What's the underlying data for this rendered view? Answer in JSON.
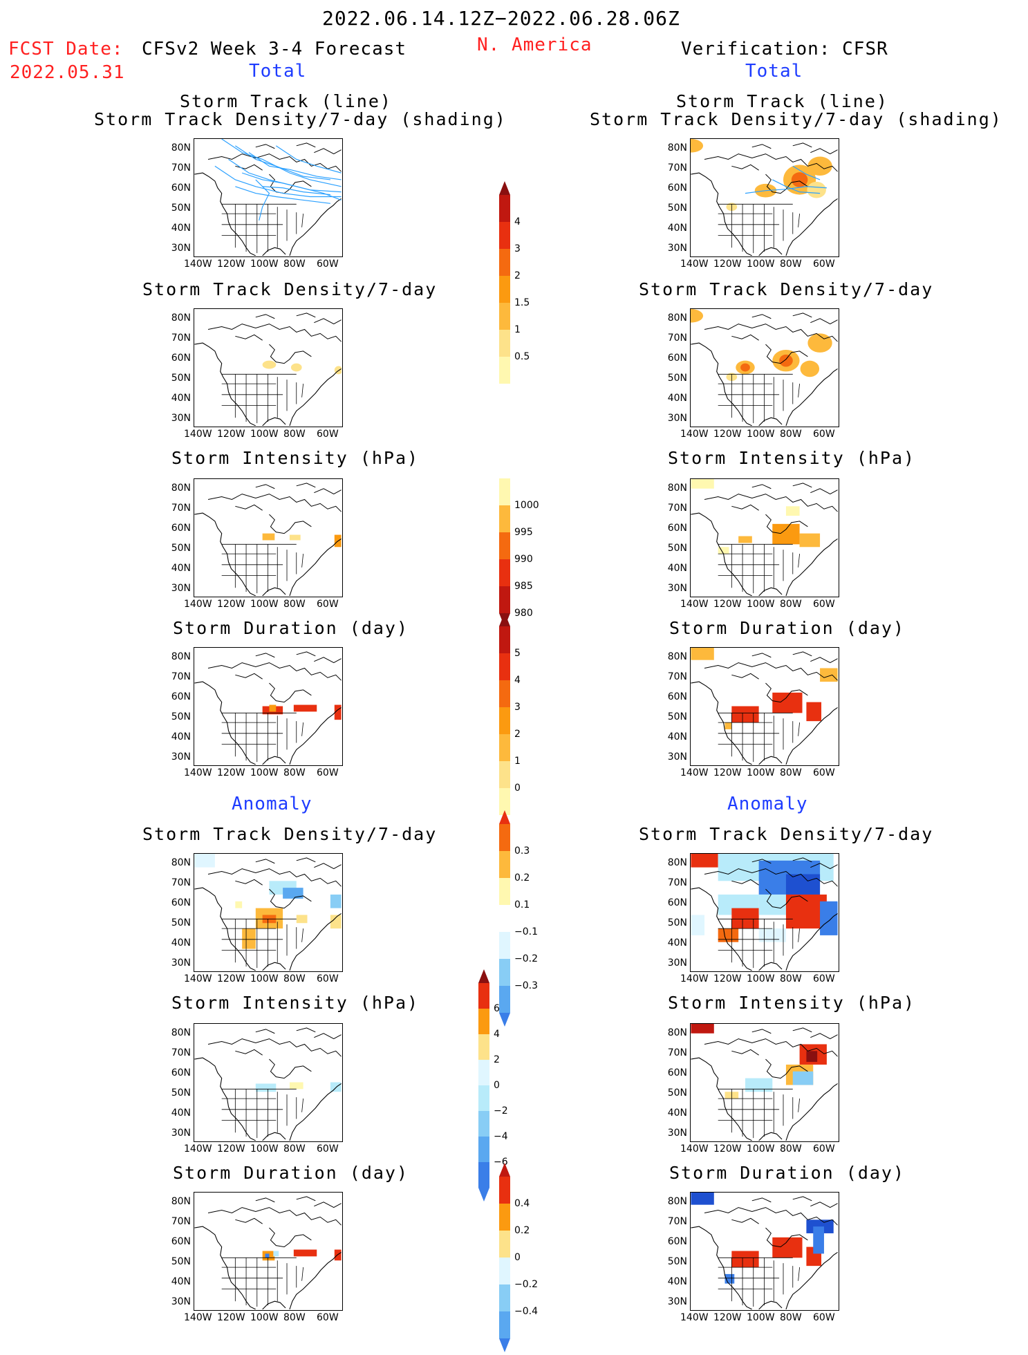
{
  "header": {
    "period": "2022.06.14.12Z−2022.06.28.06Z",
    "fcst_label": "FCST Date:",
    "fcst_date": "2022.05.31",
    "model": "CFSv2 Week 3-4 Forecast",
    "region": "N. America",
    "verification": "Verification: CFSR",
    "total_left": "Total",
    "total_right": "Total",
    "anomaly_left": "Anomaly",
    "anomaly_right": "Anomaly"
  },
  "titles": {
    "track_line": "Storm Track (line)",
    "track_density_shading": "Storm Track Density/7-day (shading)",
    "density": "Storm Track Density/7-day",
    "intensity": "Storm Intensity (hPa)",
    "duration": "Storm Duration (day)"
  },
  "axes": {
    "lat": [
      "80N",
      "70N",
      "60N",
      "50N",
      "40N",
      "30N"
    ],
    "lon": [
      "140W",
      "120W",
      "100W",
      "80W",
      "60W"
    ]
  },
  "colorbars": {
    "density_total": [
      "4",
      "3",
      "2",
      "1.5",
      "1",
      "0.5"
    ],
    "intensity_total": [
      "1000",
      "995",
      "990",
      "985",
      "980"
    ],
    "duration_total": [
      "5",
      "4",
      "3",
      "2",
      "1",
      "0"
    ],
    "density_anom": [
      "0.3",
      "0.2",
      "0.1",
      "−0.1",
      "−0.2",
      "−0.3"
    ],
    "intensity_anom": [
      "6",
      "4",
      "2",
      "0",
      "−2",
      "−4",
      "−6"
    ],
    "duration_anom": [
      "0.4",
      "0.2",
      "0",
      "−0.2",
      "−0.4"
    ]
  },
  "colors": {
    "warm": [
      "#fff8b0",
      "#fde28a",
      "#fdb93c",
      "#fb9a10",
      "#f46a10",
      "#e83010",
      "#c01810",
      "#8a1010"
    ],
    "cool": [
      "#e0f6ff",
      "#b8ebfa",
      "#88cdf5",
      "#5aa8f0",
      "#3a7ee8",
      "#1e50d0"
    ],
    "track_line": "#2aa0ff",
    "header_red": "#ff2020",
    "header_blue": "#1e3cff"
  }
}
